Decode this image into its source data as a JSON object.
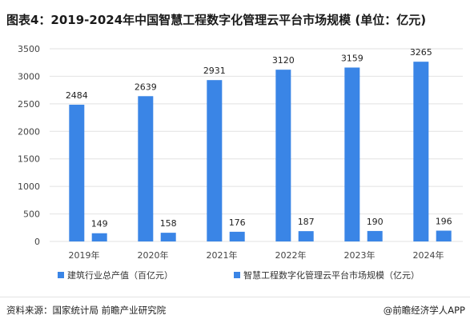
{
  "title": "图表4：2019-2024年中国智慧工程数字化管理云平台市场规模 (单位：亿元)",
  "colors": {
    "bar_primary": "#3a85e6",
    "bar_secondary": "#3a85e6",
    "grid": "#e2e2e2",
    "axis_text": "#444444"
  },
  "chart_data": {
    "type": "bar",
    "categories": [
      "2019年",
      "2020年",
      "2021年",
      "2022年",
      "2023年",
      "2024年"
    ],
    "series": [
      {
        "name": "建筑行业总产值（百亿元）",
        "values": [
          2484,
          2639,
          2931,
          3120,
          3159,
          3265
        ]
      },
      {
        "name": "智慧工程数字化管理云平台市场规模（亿元）",
        "values": [
          149,
          158,
          176,
          187,
          190,
          196
        ]
      }
    ],
    "ylim": [
      0,
      3500
    ],
    "yticks": [
      0,
      500,
      1000,
      1500,
      2000,
      2500,
      3000,
      3500
    ],
    "grid": true,
    "legend_position": "bottom",
    "xlabel": "",
    "ylabel": ""
  },
  "footer": {
    "source": "资料来源：国家统计局 前瞻产业研究院",
    "brand": "@前瞻经济学人APP"
  }
}
